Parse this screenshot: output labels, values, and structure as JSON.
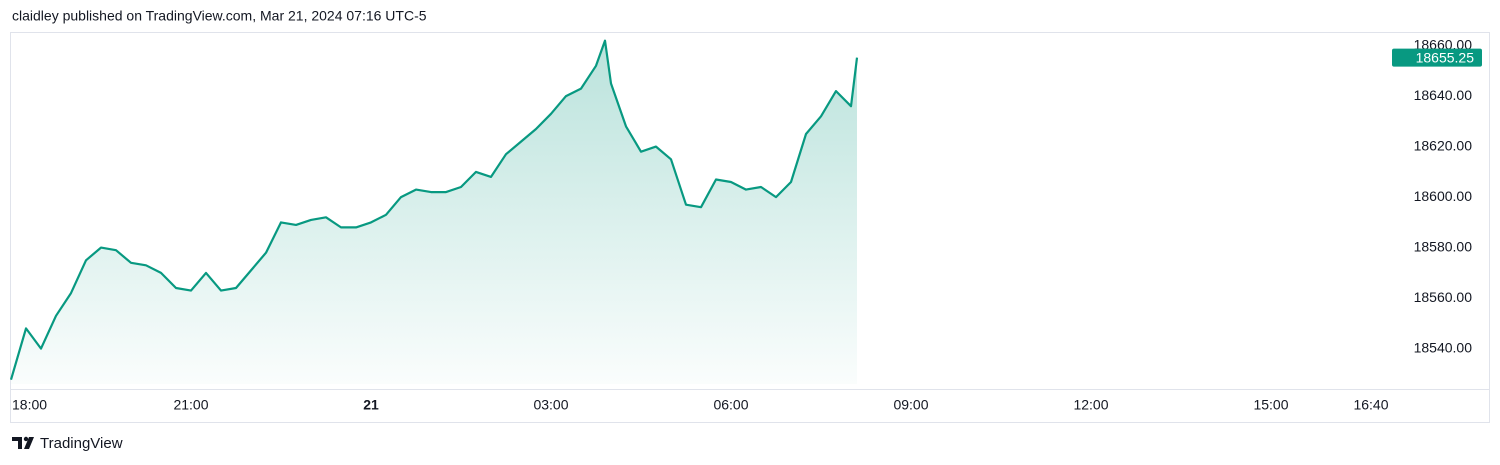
{
  "header": {
    "text": "claidley published on TradingView.com, Mar 21, 2024 07:16 UTC-5"
  },
  "chart_data": {
    "type": "area",
    "color": "#089981",
    "x": [
      "18:00",
      "18:15",
      "18:30",
      "18:45",
      "19:00",
      "19:15",
      "19:30",
      "19:45",
      "20:00",
      "20:15",
      "20:30",
      "20:45",
      "21:00",
      "21:15",
      "21:30",
      "21:45",
      "22:00",
      "22:15",
      "22:30",
      "22:45",
      "23:00",
      "23:15",
      "23:30",
      "23:45",
      "00:00",
      "00:15",
      "00:30",
      "00:45",
      "01:00",
      "01:15",
      "01:30",
      "01:45",
      "02:00",
      "02:15",
      "02:30",
      "02:45",
      "03:00",
      "03:15",
      "03:30",
      "03:45",
      "03:54",
      "04:00",
      "04:15",
      "04:30",
      "04:45",
      "05:00",
      "05:15",
      "05:30",
      "05:45",
      "06:00",
      "06:15",
      "06:30",
      "06:45",
      "07:00",
      "07:15",
      "07:30",
      "07:45",
      "08:00",
      "08:06"
    ],
    "values": [
      18527.7,
      18548,
      18540,
      18553,
      18562,
      18575,
      18580,
      18579,
      18574,
      18573,
      18570,
      18564,
      18563,
      18570,
      18563,
      18564,
      18571,
      18578,
      18590,
      18589,
      18591,
      18592,
      18588,
      18588,
      18590,
      18593,
      18600,
      18603,
      18602,
      18602,
      18604,
      18610,
      18608,
      18617,
      18622,
      18627,
      18633,
      18640,
      18643,
      18652,
      18662,
      18645,
      18628,
      18618,
      18620,
      18615,
      18597,
      18596,
      18607,
      18606,
      18603,
      18604,
      18600,
      18606,
      18625,
      18632,
      18642,
      18636,
      18655.25
    ],
    "xlim": [
      "18:00",
      "16:59"
    ],
    "xticks": [
      "18:00",
      "21:00",
      {
        "value": "00:00",
        "label": "21"
      },
      "03:00",
      "06:00",
      "09:00",
      "12:00",
      "15:00",
      "16:40"
    ],
    "ylim": [
      18526,
      18665
    ],
    "yticks": [
      {
        "value": 18540,
        "label": "18540.00"
      },
      {
        "value": 18560,
        "label": "18560.00"
      },
      {
        "value": 18580,
        "label": "18580.00"
      },
      {
        "value": 18600,
        "label": "18600.00"
      },
      {
        "value": 18620,
        "label": "18620.00"
      },
      {
        "value": 18640,
        "label": "18640.00"
      },
      {
        "value": 18660,
        "label": "18660.00"
      }
    ],
    "grid": false
  },
  "footer": {
    "brand": "TradingView"
  }
}
